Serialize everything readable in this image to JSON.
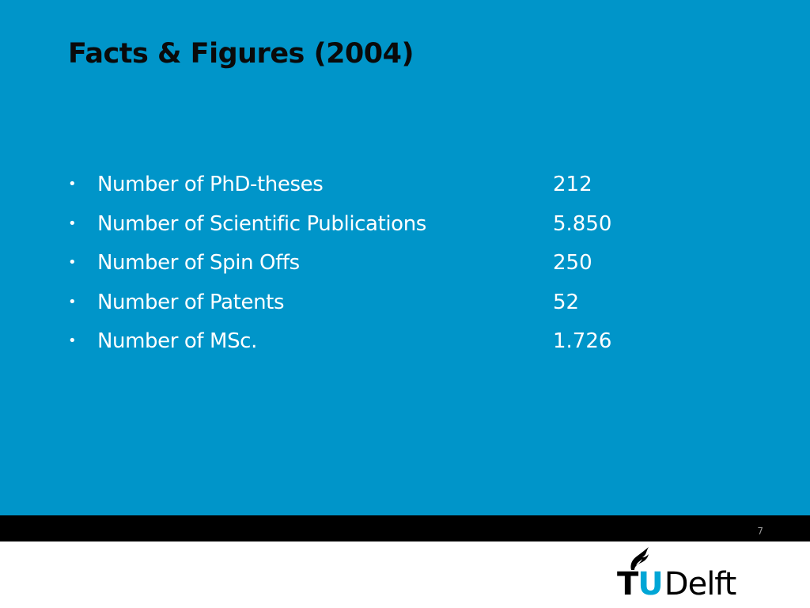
{
  "slide": {
    "title": "Facts & Figures (2004)",
    "bullet_char": "•",
    "items": [
      {
        "label": "Number of PhD-theses",
        "value": "212"
      },
      {
        "label": "Number of Scientific Publications",
        "value": "5.850"
      },
      {
        "label": "Number of Spin Offs",
        "value": "250"
      },
      {
        "label": "Number of Patents",
        "value": "52"
      },
      {
        "label": "Number of MSc.",
        "value": "1.726"
      }
    ],
    "page_number": "7"
  },
  "logo": {
    "t": "T",
    "u": "U",
    "delft": "Delft"
  },
  "colors": {
    "background": "#0095c9",
    "title": "#0a0a0a",
    "text": "#ffffff",
    "footer_bar": "#000000",
    "logo_accent": "#00a6d6"
  }
}
